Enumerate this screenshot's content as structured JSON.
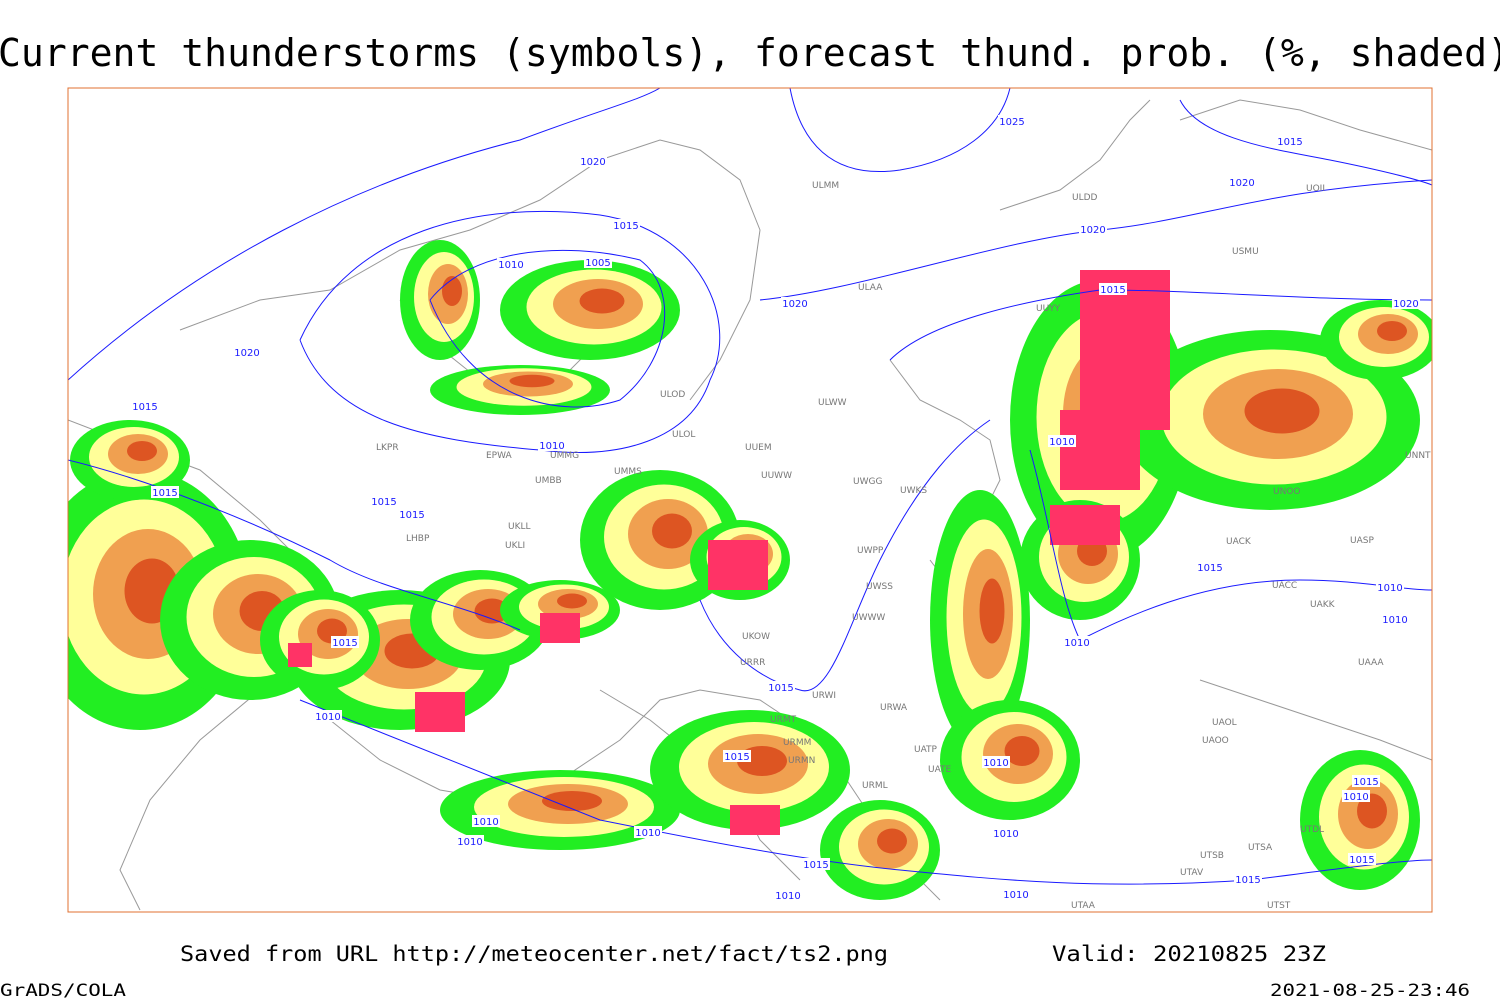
{
  "header": {
    "title": "Current thunderstorms (symbols), forecast thund. prob. (%, shaded)"
  },
  "map": {
    "isobar_labels": [
      "1025",
      "1020",
      "1015",
      "1010",
      "1005",
      "1020",
      "1020",
      "1015",
      "1020",
      "1020",
      "1020",
      "1015",
      "1015",
      "1010",
      "1015",
      "1015",
      "1015",
      "1010",
      "1015",
      "1010",
      "1010",
      "1015",
      "1010",
      "1015",
      "1010",
      "1015",
      "1010",
      "1010",
      "1010",
      "1010",
      "1010",
      "1015",
      "1010",
      "1010",
      "1015",
      "1015",
      "1015",
      "1010"
    ],
    "stations": [
      "ULMM",
      "ULAA",
      "ULDD",
      "USMU",
      "UOII",
      "UUYY",
      "ULWW",
      "UUEM",
      "ULOL",
      "ULOD",
      "EPWA",
      "UMMG",
      "LKPR",
      "UMBB",
      "UKLL",
      "UKLI",
      "LHBP",
      "UMMS",
      "UUWW",
      "UWGG",
      "UWKS",
      "UWPP",
      "UWSS",
      "UWWW",
      "UKOW",
      "URRR",
      "URWI",
      "URWA",
      "URMT",
      "URMM",
      "URMN",
      "URML",
      "UATE",
      "UATP",
      "UTAA",
      "UTSB",
      "UTSA",
      "UTAV",
      "UTST",
      "UTDL",
      "UACK",
      "UASP",
      "UACC",
      "UAKK",
      "UAAA",
      "UAOL",
      "UAOO",
      "UNOO",
      "UNNT"
    ]
  },
  "footer": {
    "source": "Saved from URL http://meteocenter.net/fact/ts2.png",
    "valid": "Valid: 20210825 23Z",
    "software": "GrADS/COLA",
    "timestamp": "2021-08-25-23:46"
  }
}
